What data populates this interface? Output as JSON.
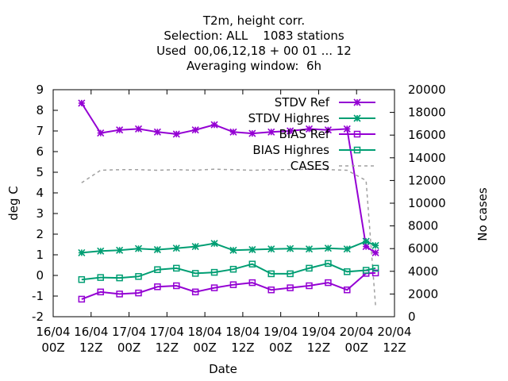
{
  "chart_data": {
    "type": "line",
    "title_lines": [
      "T2m, height corr.",
      "Selection: ALL    1083 stations",
      "Used  00,06,12,18 + 00 01 ... 12",
      "Averaging window:  6h"
    ],
    "xlabel": "Date",
    "ylabel": "deg C",
    "y2label": "No cases",
    "xlim": [
      "2020-04-16T00:00",
      "2020-04-20T12:00"
    ],
    "x_ticks": [
      {
        "line1": "16/04",
        "line2": "00Z"
      },
      {
        "line1": "16/04",
        "line2": "12Z"
      },
      {
        "line1": "17/04",
        "line2": "00Z"
      },
      {
        "line1": "17/04",
        "line2": "12Z"
      },
      {
        "line1": "18/04",
        "line2": "00Z"
      },
      {
        "line1": "18/04",
        "line2": "12Z"
      },
      {
        "line1": "19/04",
        "line2": "00Z"
      },
      {
        "line1": "19/04",
        "line2": "12Z"
      },
      {
        "line1": "20/04",
        "line2": "00Z"
      },
      {
        "line1": "20/04",
        "line2": "12Z"
      }
    ],
    "ylim": [
      -2,
      9
    ],
    "y_ticks": [
      "-2",
      "-1",
      "0",
      "1",
      "2",
      "3",
      "4",
      "5",
      "6",
      "7",
      "8",
      "9"
    ],
    "y2lim": [
      0,
      20000
    ],
    "y2_ticks": [
      "0",
      "2000",
      "4000",
      "6000",
      "8000",
      "10000",
      "12000",
      "14000",
      "16000",
      "18000",
      "20000"
    ],
    "legend_position": "top-right",
    "x": [
      "2020-04-16T09:00",
      "2020-04-16T15:00",
      "2020-04-16T21:00",
      "2020-04-17T03:00",
      "2020-04-17T09:00",
      "2020-04-17T15:00",
      "2020-04-17T21:00",
      "2020-04-18T03:00",
      "2020-04-18T09:00",
      "2020-04-18T15:00",
      "2020-04-18T21:00",
      "2020-04-19T03:00",
      "2020-04-19T09:00",
      "2020-04-19T15:00",
      "2020-04-19T21:00",
      "2020-04-20T03:00",
      "2020-04-20T06:00"
    ],
    "series": [
      {
        "name": "STDV Ref",
        "axis": "y1",
        "color": "#9400d3",
        "marker": "star",
        "values": [
          8.35,
          6.9,
          7.05,
          7.1,
          6.95,
          6.85,
          7.05,
          7.3,
          6.95,
          6.88,
          6.95,
          7.0,
          7.1,
          7.05,
          7.1,
          1.4,
          1.1
        ]
      },
      {
        "name": "STDV Highres",
        "axis": "y1",
        "color": "#009e73",
        "marker": "star",
        "values": [
          1.1,
          1.18,
          1.22,
          1.3,
          1.25,
          1.32,
          1.4,
          1.55,
          1.22,
          1.25,
          1.28,
          1.3,
          1.28,
          1.32,
          1.28,
          1.65,
          1.45
        ]
      },
      {
        "name": "BIAS Ref",
        "axis": "y1",
        "color": "#9400d3",
        "marker": "square",
        "values": [
          -1.15,
          -0.8,
          -0.9,
          -0.85,
          -0.55,
          -0.5,
          -0.8,
          -0.6,
          -0.45,
          -0.35,
          -0.7,
          -0.6,
          -0.5,
          -0.35,
          -0.7,
          0.1,
          0.12
        ]
      },
      {
        "name": "BIAS Highres",
        "axis": "y1",
        "color": "#009e73",
        "marker": "square",
        "values": [
          -0.2,
          -0.1,
          -0.12,
          -0.05,
          0.28,
          0.35,
          0.1,
          0.15,
          0.3,
          0.55,
          0.08,
          0.08,
          0.35,
          0.58,
          0.18,
          0.25,
          0.35
        ]
      },
      {
        "name": "CASES",
        "axis": "y2",
        "color": "#a0a0a0",
        "marker": "none",
        "values": [
          11800,
          12900,
          12950,
          12950,
          12900,
          12950,
          12900,
          13000,
          12950,
          12900,
          12950,
          12950,
          13000,
          12950,
          12900,
          12000,
          1000
        ]
      }
    ]
  }
}
